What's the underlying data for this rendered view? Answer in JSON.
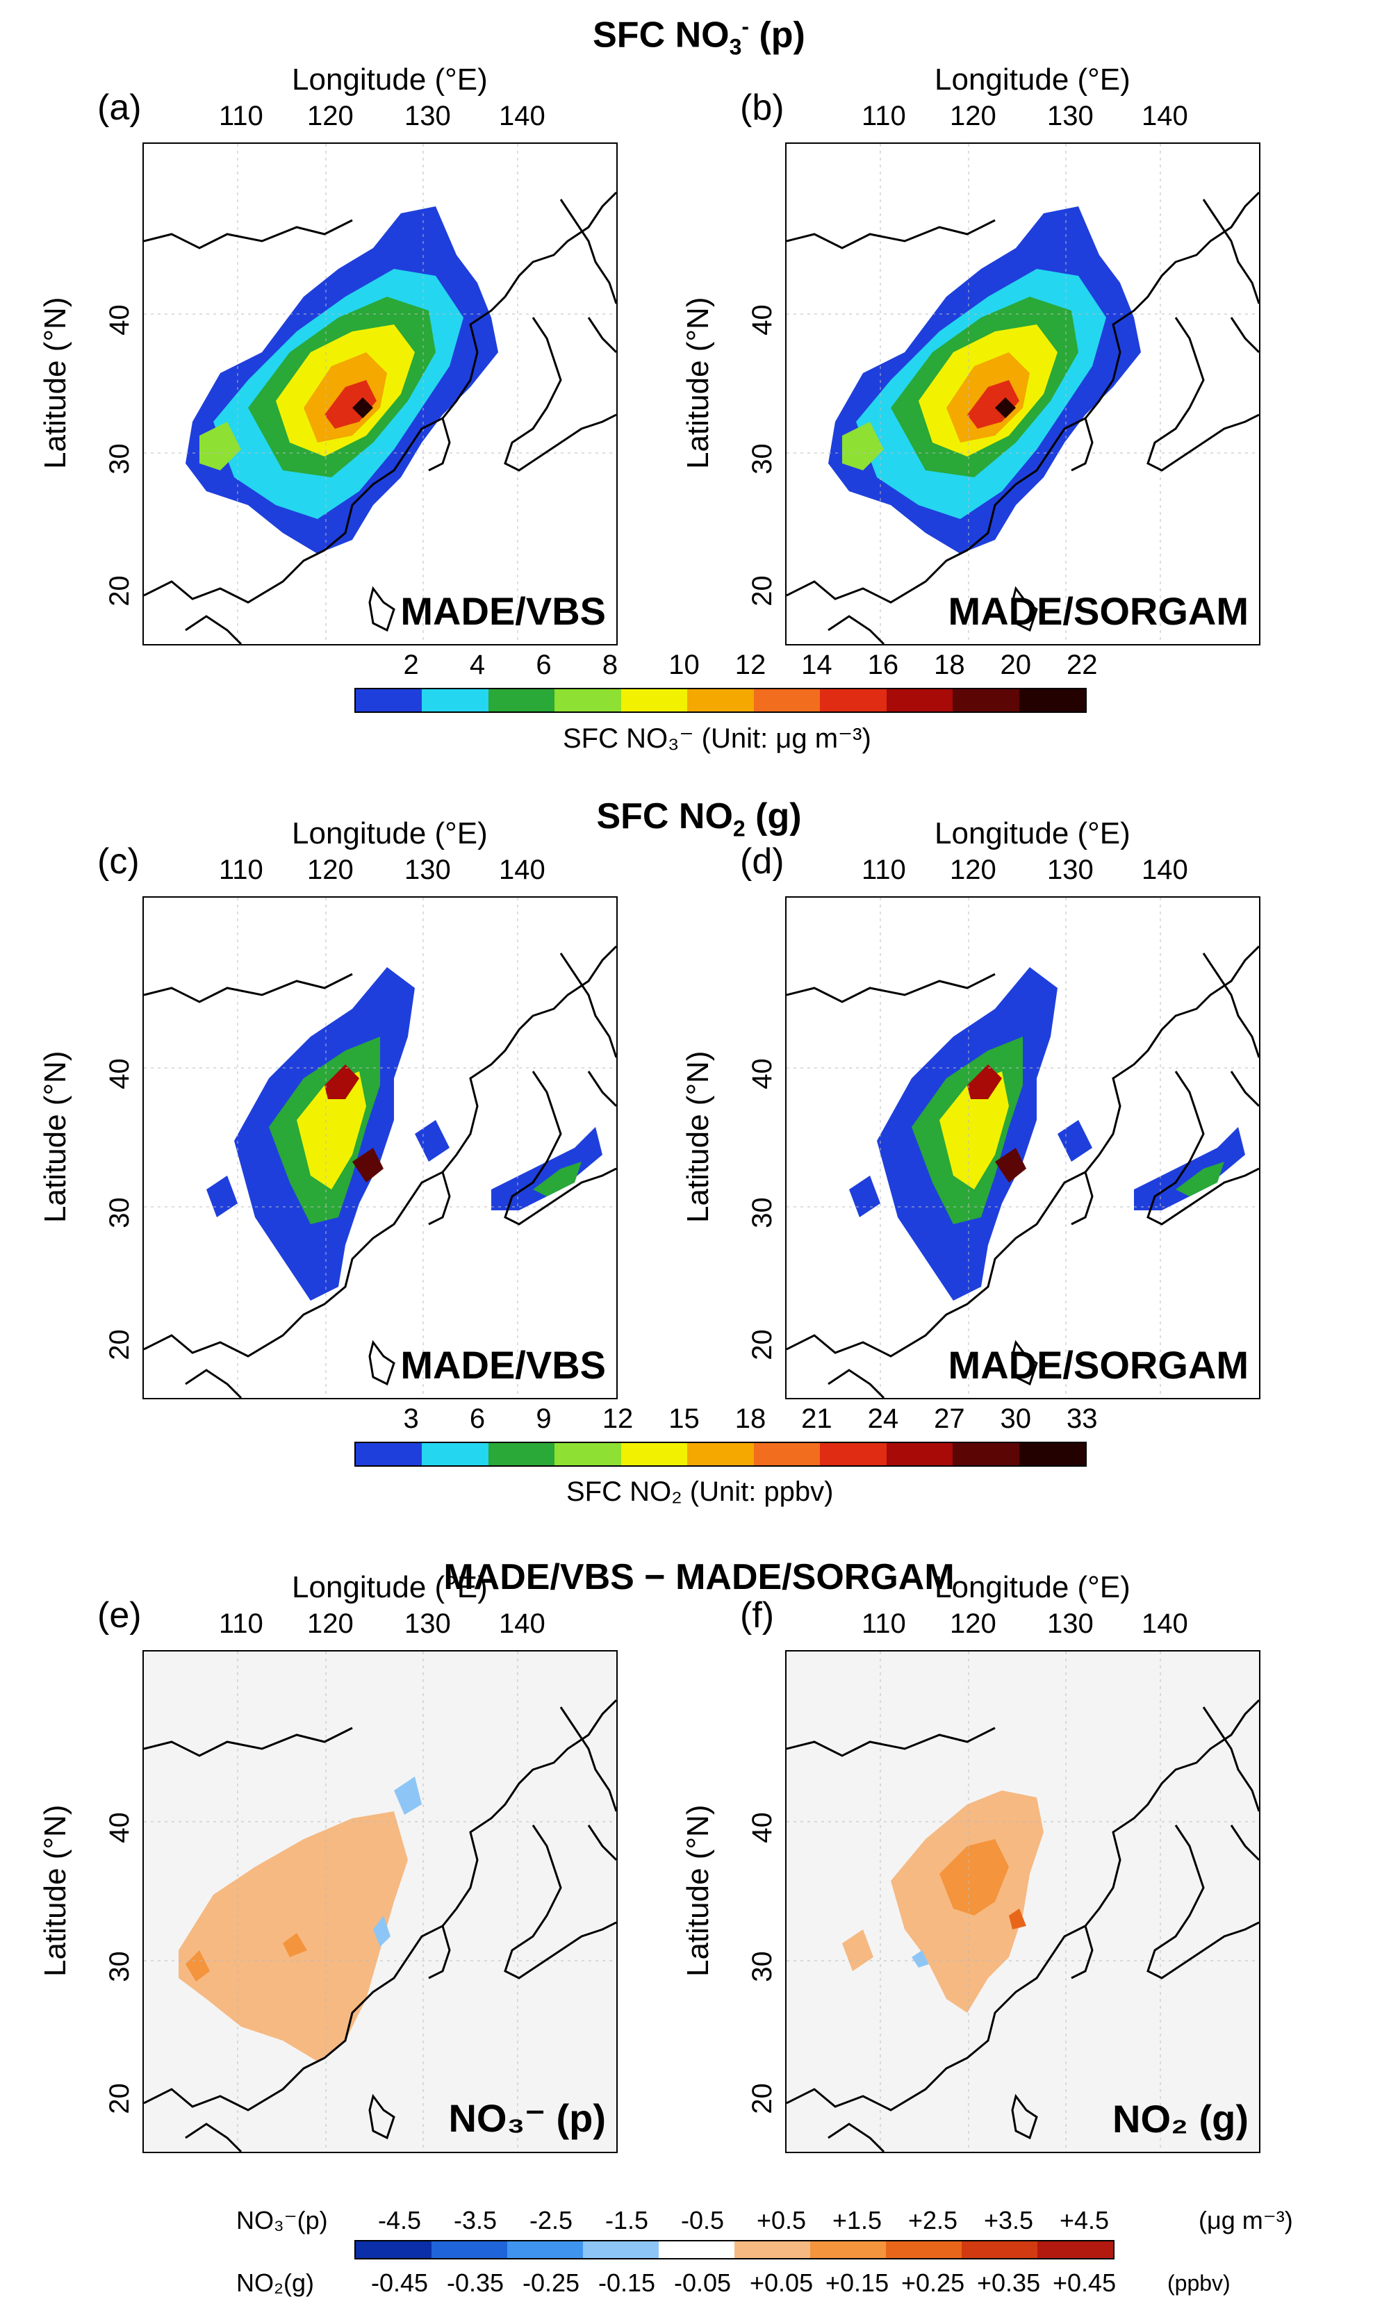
{
  "sections": [
    {
      "title": "SFC NO",
      "title_sub": "3",
      "title_sup": "-",
      "title_tail": " (p)"
    },
    {
      "title": "SFC NO",
      "title_sub": "2",
      "title_sup": "",
      "title_tail": " (g)"
    },
    {
      "title": "MADE/VBS −  MADE/SORGAM",
      "title_sub": "",
      "title_sup": "",
      "title_tail": ""
    }
  ],
  "axis": {
    "lon_title": "Longitude (°E)",
    "lat_title": "Latitude (°N)",
    "lon_ticks": [
      "110",
      "120",
      "130",
      "140"
    ],
    "lat_ticks": [
      "40",
      "30",
      "20"
    ]
  },
  "panels": [
    {
      "label": "(a)",
      "tag": "MADE/VBS"
    },
    {
      "label": "(b)",
      "tag": "MADE/SORGAM"
    },
    {
      "label": "(c)",
      "tag": "MADE/VBS"
    },
    {
      "label": "(d)",
      "tag": "MADE/SORGAM"
    },
    {
      "label": "(e)",
      "tag": "NO₃⁻ (p)"
    },
    {
      "label": "(f)",
      "tag": "NO₂ (g)"
    }
  ],
  "colorbar1": {
    "ticks": [
      "2",
      "4",
      "6",
      "8",
      "10",
      "12",
      "14",
      "16",
      "18",
      "20",
      "22"
    ],
    "title": "SFC NO₃⁻ (Unit: μg m⁻³)",
    "colors": [
      "#1f3fdc",
      "#25d6f0",
      "#2aa838",
      "#8ee032",
      "#f2f200",
      "#f4a800",
      "#f26d1e",
      "#e02c12",
      "#a80a08",
      "#5c0505",
      "#230101"
    ]
  },
  "colorbar2": {
    "ticks": [
      "3",
      "6",
      "9",
      "12",
      "15",
      "18",
      "21",
      "24",
      "27",
      "30",
      "33"
    ],
    "title": "SFC NO₂ (Unit: ppbv)",
    "colors": [
      "#1f3fdc",
      "#25d6f0",
      "#2aa838",
      "#8ee032",
      "#f2f200",
      "#f4a800",
      "#f26d1e",
      "#e02c12",
      "#a80a08",
      "#5c0505",
      "#230101"
    ]
  },
  "colorbar3": {
    "row1_label": "NO₃⁻(p)",
    "row1_ticks": [
      "-4.5",
      "-3.5",
      "-2.5",
      "-1.5",
      "-0.5",
      "+0.5",
      "+1.5",
      "+2.5",
      "+3.5",
      "+4.5"
    ],
    "row1_unit": "(μg m⁻³)",
    "row2_label": "NO₂(g)",
    "row2_ticks": [
      "-0.45",
      "-0.35",
      "-0.25",
      "-0.15",
      "-0.05",
      "+0.05",
      "+0.15",
      "+0.25",
      "+0.35",
      "+0.45"
    ],
    "row2_unit": "(ppbv)",
    "colors": [
      "#0b2fa8",
      "#1f64d8",
      "#3f95ee",
      "#8dc6f6",
      "#ffffff",
      "#f6b982",
      "#f4943c",
      "#e8661a",
      "#d23a12",
      "#b21a10"
    ]
  }
}
